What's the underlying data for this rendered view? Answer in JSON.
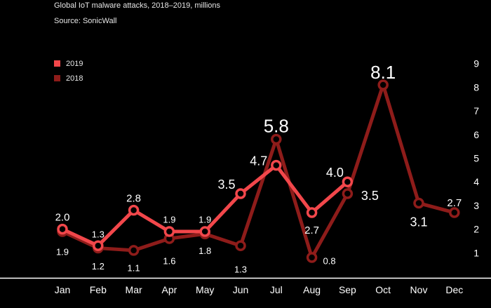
{
  "header": {
    "title": "Global IoT malware attacks, 2018–2019, millions",
    "source": "Source: SonicWall"
  },
  "legend": [
    {
      "label": "2019",
      "color": "#f2474b"
    },
    {
      "label": "2018",
      "color": "#8e1c1a"
    }
  ],
  "chart_data": {
    "type": "line",
    "categories": [
      "Jan",
      "Feb",
      "Mar",
      "Apr",
      "May",
      "Jun",
      "Jul",
      "Aug",
      "Sep",
      "Oct",
      "Nov",
      "Dec"
    ],
    "y_ticks": [
      1,
      2,
      3,
      4,
      5,
      6,
      7,
      8,
      9
    ],
    "ylim": [
      0,
      9.5
    ],
    "y_axis_position": "right",
    "grid": false,
    "legend_position": "top-left",
    "series": [
      {
        "name": "2019",
        "color": "#f2474b",
        "values": [
          2.0,
          1.3,
          2.8,
          1.9,
          1.9,
          3.5,
          4.7,
          2.7,
          4.0,
          null,
          null,
          null
        ],
        "labels": [
          "2.0",
          "1.3",
          "2.8",
          "1.9",
          "1.9",
          "3.5",
          "4.7",
          "2.7",
          "4.0",
          "",
          "",
          ""
        ]
      },
      {
        "name": "2018",
        "color": "#8e1c1a",
        "values": [
          1.9,
          1.2,
          1.1,
          1.6,
          1.8,
          1.3,
          5.8,
          0.8,
          3.5,
          8.1,
          3.1,
          2.7
        ],
        "labels": [
          "1.9",
          "1.2",
          "1.1",
          "1.6",
          "1.8",
          "1.3",
          "5.8",
          "0.8",
          "3.5",
          "8.1",
          "3.1",
          "2.7"
        ]
      }
    ]
  }
}
